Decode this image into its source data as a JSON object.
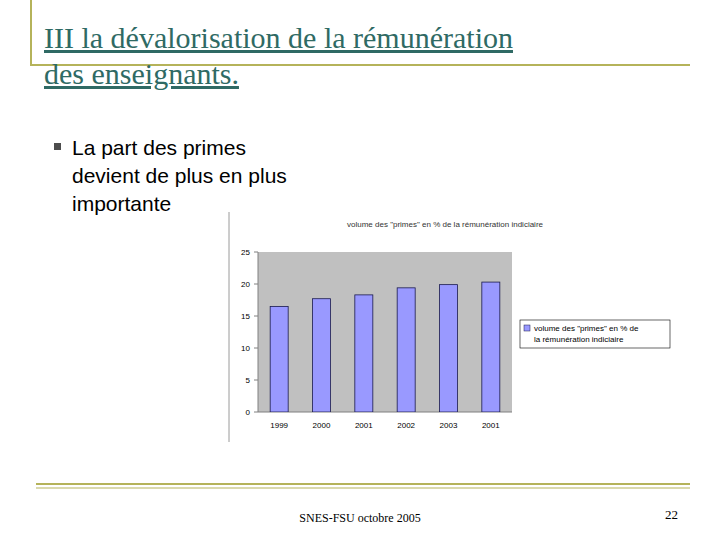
{
  "slide": {
    "title_lines": [
      "III   la dévalorisation de la rémunération",
      "des enseignants."
    ],
    "bullet_lines": [
      "La part des primes",
      "devient de plus en plus",
      "importante"
    ],
    "footer": "SNES-FSU octobre 2005",
    "page_number": 22
  },
  "chart_data": {
    "type": "bar",
    "title": "volume des \"primes\" en % de la rémunération indiciaire",
    "categories": [
      "1999",
      "2000",
      "2001",
      "2002",
      "2003",
      "2001"
    ],
    "series": [
      {
        "name": "volume des \"primes\" en % de la rémunération indiciaire",
        "color": "#9999ff",
        "values": [
          16.5,
          17.7,
          18.3,
          19.4,
          19.9,
          20.3
        ]
      }
    ],
    "ylim": [
      0,
      25
    ],
    "yticks": [
      0,
      5,
      10,
      15,
      20,
      25
    ],
    "grid": false,
    "legend": "right"
  }
}
